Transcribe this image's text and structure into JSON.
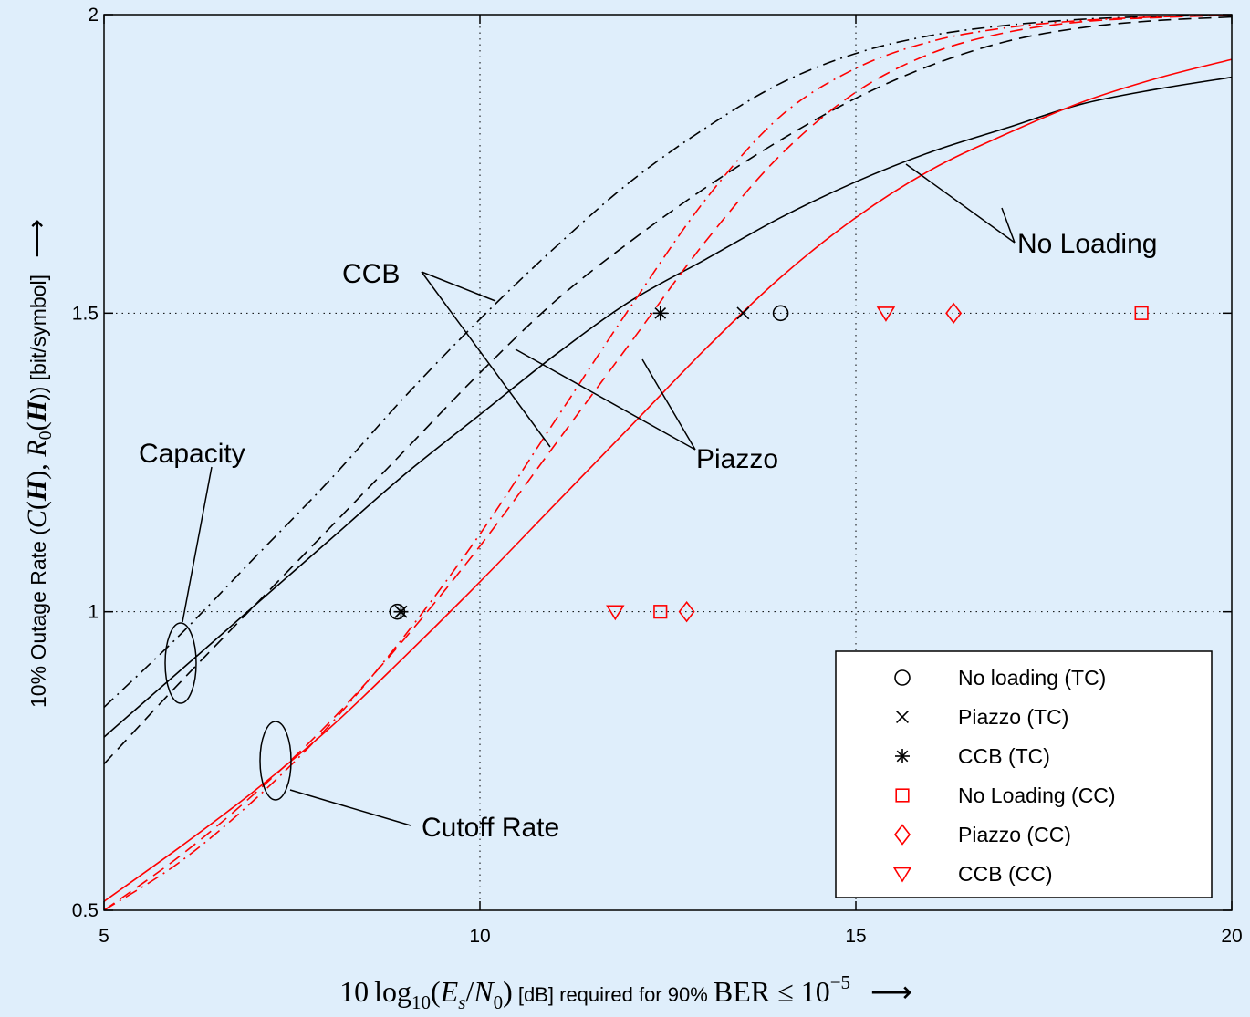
{
  "chart_data": {
    "type": "line",
    "title": "",
    "xlabel": {
      "prefix": "10",
      "log": "log",
      "log_sub": "10",
      "ratio_es": "E",
      "ratio_es_sub": "s",
      "ratio_n0": "N",
      "ratio_n0_sub": "0",
      "unit": " [dB] required for 90% ",
      "ber": "BER",
      "leq": " ≤ 10",
      "exp": "−5",
      "arrow": "⟶"
    },
    "ylabel": {
      "prefix": "10% Outage Rate (",
      "c": "C",
      "h1": "H",
      "sep": "), ",
      "r": "R",
      "r_sub": "0",
      "h2": "H",
      "close": ")) [bit/symbol]",
      "arrow": "⟶"
    },
    "xlim": [
      5,
      20
    ],
    "ylim": [
      0.5,
      2
    ],
    "xticks": [
      5,
      10,
      15,
      20
    ],
    "xtick_labels": [
      "5",
      "10",
      "15",
      "20"
    ],
    "yticks": [
      0.5,
      1,
      1.5,
      2
    ],
    "ytick_labels": [
      "0.5",
      "1",
      "1.5",
      "2"
    ],
    "grid": true,
    "legend_position": "lower-right",
    "colors": {
      "black": "#000000",
      "red": "#ff0000"
    },
    "series": [
      {
        "key": "cap_none",
        "color": "#000000",
        "dash": "solid",
        "x": [
          5,
          6,
          7,
          8,
          9,
          10,
          11,
          12,
          13,
          14,
          15,
          16,
          17,
          18,
          19,
          20
        ],
        "y": [
          0.79,
          0.9,
          1.01,
          1.12,
          1.23,
          1.33,
          1.43,
          1.52,
          1.59,
          1.66,
          1.72,
          1.77,
          1.81,
          1.85,
          1.875,
          1.895
        ]
      },
      {
        "key": "cap_ccb",
        "color": "#000000",
        "dash": "dashdot",
        "x": [
          5,
          6,
          7,
          8,
          9,
          10,
          11,
          12,
          13,
          14,
          15,
          16,
          17,
          18,
          19,
          20
        ],
        "y": [
          0.84,
          0.96,
          1.09,
          1.22,
          1.36,
          1.49,
          1.61,
          1.72,
          1.81,
          1.885,
          1.935,
          1.965,
          1.982,
          1.992,
          1.997,
          1.999
        ]
      },
      {
        "key": "cap_piazzo",
        "color": "#000000",
        "dash": "dashed",
        "x": [
          5,
          6,
          7,
          8,
          9,
          10,
          11,
          12,
          13,
          14,
          15,
          16,
          17,
          18,
          19,
          20
        ],
        "y": [
          0.745,
          0.88,
          1.01,
          1.14,
          1.27,
          1.4,
          1.52,
          1.62,
          1.71,
          1.79,
          1.86,
          1.915,
          1.955,
          1.978,
          1.99,
          1.996
        ]
      },
      {
        "key": "cut_none",
        "color": "#ff0000",
        "dash": "solid",
        "x": [
          5,
          6,
          7,
          8,
          9,
          10,
          11,
          12,
          13,
          14,
          15,
          16,
          17,
          18,
          19,
          20
        ],
        "y": [
          0.515,
          0.605,
          0.7,
          0.805,
          0.925,
          1.05,
          1.18,
          1.31,
          1.44,
          1.56,
          1.66,
          1.74,
          1.8,
          1.853,
          1.893,
          1.925
        ]
      },
      {
        "key": "cut_ccb",
        "color": "#ff0000",
        "dash": "dashdot",
        "x": [
          5,
          6,
          7,
          8,
          9,
          10,
          11,
          12,
          13,
          14,
          15,
          16,
          17,
          18,
          19,
          20
        ],
        "y": [
          0.5,
          0.58,
          0.685,
          0.81,
          0.96,
          1.13,
          1.32,
          1.51,
          1.69,
          1.83,
          1.91,
          1.955,
          1.978,
          1.99,
          1.996,
          1.999
        ]
      },
      {
        "key": "cut_piazzo",
        "color": "#ff0000",
        "dash": "dashed",
        "x": [
          5,
          6,
          7,
          8,
          9,
          10,
          11,
          12,
          13,
          14,
          15,
          16,
          17,
          18,
          19,
          20
        ],
        "y": [
          0.5,
          0.59,
          0.695,
          0.815,
          0.955,
          1.11,
          1.28,
          1.45,
          1.62,
          1.765,
          1.87,
          1.935,
          1.97,
          1.988,
          1.995,
          1.999
        ]
      }
    ],
    "markers": [
      {
        "marker": "o",
        "color": "#000000",
        "x": 8.9,
        "y": 1.0
      },
      {
        "marker": "x",
        "color": "#000000",
        "x": 8.95,
        "y": 1.0
      },
      {
        "marker": "*",
        "color": "#000000",
        "x": 8.95,
        "y": 1.0
      },
      {
        "marker": "*",
        "color": "#000000",
        "x": 12.4,
        "y": 1.5
      },
      {
        "marker": "x",
        "color": "#000000",
        "x": 13.5,
        "y": 1.5
      },
      {
        "marker": "o",
        "color": "#000000",
        "x": 14.0,
        "y": 1.5
      },
      {
        "marker": "v",
        "color": "#ff0000",
        "x": 11.8,
        "y": 1.0
      },
      {
        "marker": "s",
        "color": "#ff0000",
        "x": 12.4,
        "y": 1.0
      },
      {
        "marker": "d",
        "color": "#ff0000",
        "x": 12.75,
        "y": 1.0
      },
      {
        "marker": "v",
        "color": "#ff0000",
        "x": 15.4,
        "y": 1.5
      },
      {
        "marker": "d",
        "color": "#ff0000",
        "x": 16.3,
        "y": 1.5
      },
      {
        "marker": "s",
        "color": "#ff0000",
        "x": 18.8,
        "y": 1.5
      }
    ],
    "legend": [
      {
        "label": "No loading (TC)",
        "marker": "o",
        "color": "#000000"
      },
      {
        "label": "Piazzo (TC)",
        "marker": "x",
        "color": "#000000"
      },
      {
        "label": "CCB (TC)",
        "marker": "*",
        "color": "#000000"
      },
      {
        "label": "No Loading (CC)",
        "marker": "s",
        "color": "#ff0000"
      },
      {
        "label": "Piazzo (CC)",
        "marker": "d",
        "color": "#ff0000"
      },
      {
        "label": "CCB (CC)",
        "marker": "v",
        "color": "#ff0000"
      }
    ],
    "annotations": {
      "ccb": "CCB",
      "no_loading": "No Loading",
      "piazzo": "Piazzo",
      "capacity": "Capacity",
      "cutoff_rate": "Cutoff Rate"
    }
  }
}
